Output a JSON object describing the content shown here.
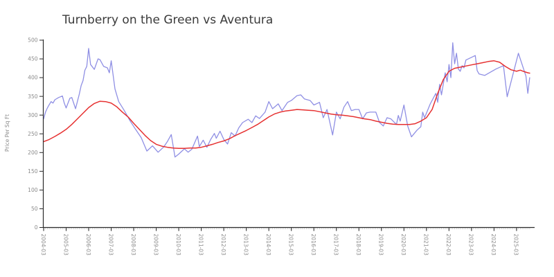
{
  "chart_data": {
    "type": "line",
    "title": "Turnberry on the Green vs Aventura",
    "xlabel": "",
    "ylabel": "Price Per Sq Ft",
    "ylim": [
      0,
      500
    ],
    "yticks": [
      0,
      50,
      100,
      150,
      200,
      250,
      300,
      350,
      400,
      450,
      500
    ],
    "xticks": [
      "2004-03",
      "2005-03",
      "2006-03",
      "2007-03",
      "2008-03",
      "2009-03",
      "2010-03",
      "2011-03",
      "2012-03",
      "2013-03",
      "2014-03",
      "2015-03",
      "2016-03",
      "2017-03",
      "2018-03",
      "2019-03",
      "2020-03",
      "2021-03",
      "2022-03",
      "2023-03",
      "2024-03",
      "2025-03"
    ],
    "x_minor_tick_unit": "month",
    "x_range": [
      "2004-03",
      "2025-10"
    ],
    "grid": false,
    "legend": "none",
    "axis_color": "#2b2b2b",
    "tick_label_color": "#8a8a8a",
    "series": [
      {
        "name": "Turnberry on the Green",
        "color": "#8f8fe4",
        "line_width": 1.3,
        "points": [
          [
            "2004-03",
            290
          ],
          [
            "2004-04",
            308
          ],
          [
            "2004-05",
            319
          ],
          [
            "2004-06",
            328
          ],
          [
            "2004-07",
            336
          ],
          [
            "2004-08",
            332
          ],
          [
            "2004-09",
            341
          ],
          [
            "2004-11",
            347
          ],
          [
            "2005-01",
            351
          ],
          [
            "2005-02",
            332
          ],
          [
            "2005-03",
            319
          ],
          [
            "2005-05",
            345
          ],
          [
            "2005-06",
            347
          ],
          [
            "2005-08",
            317
          ],
          [
            "2005-10",
            356
          ],
          [
            "2005-11",
            379
          ],
          [
            "2005-12",
            392
          ],
          [
            "2006-01",
            420
          ],
          [
            "2006-02",
            430
          ],
          [
            "2006-03",
            478
          ],
          [
            "2006-04",
            435
          ],
          [
            "2006-06",
            422
          ],
          [
            "2006-08",
            450
          ],
          [
            "2006-09",
            448
          ],
          [
            "2006-11",
            430
          ],
          [
            "2007-01",
            426
          ],
          [
            "2007-02",
            413
          ],
          [
            "2007-03",
            445
          ],
          [
            "2007-05",
            370
          ],
          [
            "2007-07",
            336
          ],
          [
            "2007-10",
            312
          ],
          [
            "2008-01",
            285
          ],
          [
            "2008-04",
            262
          ],
          [
            "2008-07",
            240
          ],
          [
            "2008-10",
            204
          ],
          [
            "2009-01",
            218
          ],
          [
            "2009-04",
            201
          ],
          [
            "2009-07",
            215
          ],
          [
            "2009-09",
            230
          ],
          [
            "2009-11",
            248
          ],
          [
            "2010-01",
            188
          ],
          [
            "2010-03",
            196
          ],
          [
            "2010-06",
            210
          ],
          [
            "2010-08",
            201
          ],
          [
            "2010-10",
            209
          ],
          [
            "2011-01",
            244
          ],
          [
            "2011-02",
            216
          ],
          [
            "2011-04",
            233
          ],
          [
            "2011-06",
            214
          ],
          [
            "2011-08",
            235
          ],
          [
            "2011-10",
            251
          ],
          [
            "2011-11",
            238
          ],
          [
            "2012-01",
            257
          ],
          [
            "2012-03",
            235
          ],
          [
            "2012-05",
            223
          ],
          [
            "2012-07",
            253
          ],
          [
            "2012-09",
            244
          ],
          [
            "2012-11",
            266
          ],
          [
            "2013-01",
            280
          ],
          [
            "2013-04",
            289
          ],
          [
            "2013-06",
            280
          ],
          [
            "2013-08",
            298
          ],
          [
            "2013-10",
            291
          ],
          [
            "2014-01",
            308
          ],
          [
            "2014-03",
            336
          ],
          [
            "2014-05",
            317
          ],
          [
            "2014-08",
            330
          ],
          [
            "2014-10",
            312
          ],
          [
            "2015-01",
            334
          ],
          [
            "2015-03",
            339
          ],
          [
            "2015-06",
            352
          ],
          [
            "2015-08",
            354
          ],
          [
            "2015-10",
            343
          ],
          [
            "2016-01",
            339
          ],
          [
            "2016-03",
            327
          ],
          [
            "2016-06",
            334
          ],
          [
            "2016-08",
            293
          ],
          [
            "2016-10",
            315
          ],
          [
            "2017-01",
            247
          ],
          [
            "2017-03",
            308
          ],
          [
            "2017-05",
            290
          ],
          [
            "2017-07",
            321
          ],
          [
            "2017-09",
            336
          ],
          [
            "2017-11",
            312
          ],
          [
            "2018-01",
            315
          ],
          [
            "2018-03",
            315
          ],
          [
            "2018-05",
            290
          ],
          [
            "2018-07",
            306
          ],
          [
            "2018-09",
            308
          ],
          [
            "2018-12",
            308
          ],
          [
            "2019-02",
            280
          ],
          [
            "2019-04",
            271
          ],
          [
            "2019-06",
            293
          ],
          [
            "2019-08",
            290
          ],
          [
            "2019-11",
            275
          ],
          [
            "2019-12",
            299
          ],
          [
            "2020-01",
            284
          ],
          [
            "2020-03",
            327
          ],
          [
            "2020-05",
            271
          ],
          [
            "2020-07",
            242
          ],
          [
            "2020-10",
            260
          ],
          [
            "2020-12",
            269
          ],
          [
            "2021-01",
            308
          ],
          [
            "2021-02",
            293
          ],
          [
            "2021-05",
            330
          ],
          [
            "2021-08",
            358
          ],
          [
            "2021-09",
            334
          ],
          [
            "2021-10",
            382
          ],
          [
            "2021-11",
            354
          ],
          [
            "2022-01",
            413
          ],
          [
            "2022-02",
            389
          ],
          [
            "2022-03",
            435
          ],
          [
            "2022-04",
            400
          ],
          [
            "2022-05",
            493
          ],
          [
            "2022-06",
            437
          ],
          [
            "2022-07",
            465
          ],
          [
            "2022-08",
            423
          ],
          [
            "2022-09",
            417
          ],
          [
            "2022-10",
            432
          ],
          [
            "2022-11",
            426
          ],
          [
            "2022-12",
            447
          ],
          [
            "2023-05",
            459
          ],
          [
            "2023-06",
            419
          ],
          [
            "2023-07",
            410
          ],
          [
            "2023-10",
            406
          ],
          [
            "2024-04",
            423
          ],
          [
            "2024-08",
            432
          ],
          [
            "2024-10",
            349
          ],
          [
            "2025-04",
            465
          ],
          [
            "2025-08",
            404
          ],
          [
            "2025-09",
            358
          ],
          [
            "2025-10",
            400
          ]
        ]
      },
      {
        "name": "Aventura",
        "color": "#e63030",
        "line_width": 1.5,
        "points": [
          [
            "2004-03",
            229
          ],
          [
            "2004-06",
            235
          ],
          [
            "2004-09",
            243
          ],
          [
            "2004-12",
            252
          ],
          [
            "2005-03",
            262
          ],
          [
            "2005-06",
            275
          ],
          [
            "2005-09",
            290
          ],
          [
            "2005-12",
            305
          ],
          [
            "2006-03",
            320
          ],
          [
            "2006-06",
            331
          ],
          [
            "2006-09",
            337
          ],
          [
            "2006-12",
            336
          ],
          [
            "2007-03",
            332
          ],
          [
            "2007-06",
            322
          ],
          [
            "2007-09",
            308
          ],
          [
            "2007-12",
            295
          ],
          [
            "2008-03",
            278
          ],
          [
            "2008-06",
            262
          ],
          [
            "2008-09",
            246
          ],
          [
            "2008-12",
            232
          ],
          [
            "2009-03",
            222
          ],
          [
            "2009-06",
            217
          ],
          [
            "2009-09",
            214
          ],
          [
            "2009-12",
            212
          ],
          [
            "2010-03",
            211
          ],
          [
            "2010-06",
            211
          ],
          [
            "2010-09",
            212
          ],
          [
            "2010-12",
            212
          ],
          [
            "2011-03",
            214
          ],
          [
            "2011-06",
            218
          ],
          [
            "2011-09",
            222
          ],
          [
            "2011-12",
            227
          ],
          [
            "2012-03",
            231
          ],
          [
            "2012-06",
            237
          ],
          [
            "2012-09",
            245
          ],
          [
            "2012-12",
            252
          ],
          [
            "2013-03",
            259
          ],
          [
            "2013-06",
            267
          ],
          [
            "2013-09",
            275
          ],
          [
            "2013-12",
            285
          ],
          [
            "2014-03",
            295
          ],
          [
            "2014-06",
            303
          ],
          [
            "2014-09",
            308
          ],
          [
            "2014-12",
            311
          ],
          [
            "2015-03",
            313
          ],
          [
            "2015-06",
            315
          ],
          [
            "2015-09",
            314
          ],
          [
            "2015-12",
            313
          ],
          [
            "2016-03",
            312
          ],
          [
            "2016-06",
            309
          ],
          [
            "2016-09",
            306
          ],
          [
            "2016-12",
            303
          ],
          [
            "2017-03",
            301
          ],
          [
            "2017-06",
            300
          ],
          [
            "2017-09",
            298
          ],
          [
            "2017-12",
            296
          ],
          [
            "2018-03",
            293
          ],
          [
            "2018-06",
            290
          ],
          [
            "2018-09",
            288
          ],
          [
            "2018-12",
            284
          ],
          [
            "2019-03",
            281
          ],
          [
            "2019-06",
            278
          ],
          [
            "2019-09",
            276
          ],
          [
            "2019-12",
            275
          ],
          [
            "2020-03",
            275
          ],
          [
            "2020-06",
            275
          ],
          [
            "2020-09",
            277
          ],
          [
            "2020-12",
            284
          ],
          [
            "2021-03",
            293
          ],
          [
            "2021-06",
            315
          ],
          [
            "2021-09",
            358
          ],
          [
            "2021-12",
            395
          ],
          [
            "2022-03",
            417
          ],
          [
            "2022-06",
            425
          ],
          [
            "2022-09",
            428
          ],
          [
            "2022-12",
            431
          ],
          [
            "2023-03",
            434
          ],
          [
            "2023-06",
            437
          ],
          [
            "2023-09",
            440
          ],
          [
            "2023-12",
            443
          ],
          [
            "2024-03",
            445
          ],
          [
            "2024-06",
            441
          ],
          [
            "2024-09",
            430
          ],
          [
            "2024-12",
            421
          ],
          [
            "2025-03",
            417
          ],
          [
            "2025-05",
            420
          ],
          [
            "2025-07",
            416
          ],
          [
            "2025-09",
            413
          ],
          [
            "2025-10",
            412
          ]
        ]
      }
    ]
  }
}
